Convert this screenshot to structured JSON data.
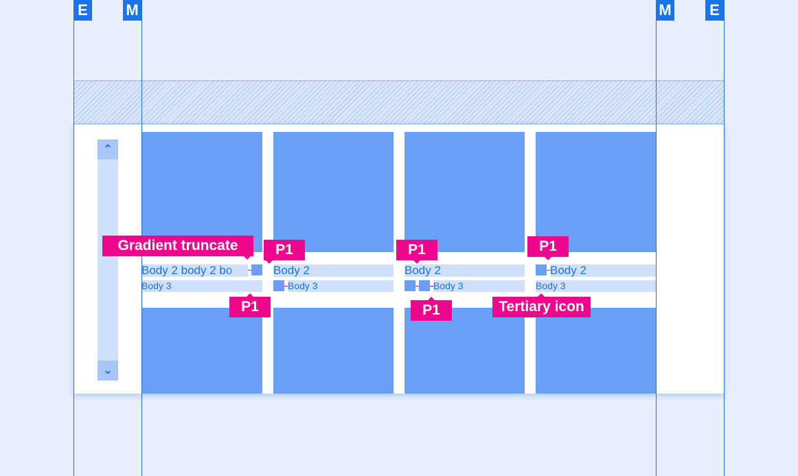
{
  "badges": {
    "edge": "E",
    "margin": "M"
  },
  "scrollbar": {
    "up_icon": "chevron-up-icon",
    "down_icon": "chevron-down-icon"
  },
  "columns": [
    {
      "body2": "Body 2 body 2 bo",
      "body3": "Body 3"
    },
    {
      "body2": "Body 2",
      "body3": "Body 3"
    },
    {
      "body2": "Body 2",
      "body3": "Body 3"
    },
    {
      "body2": "Body 2",
      "body3": "Body 3"
    }
  ],
  "labels": {
    "gradient_truncate": "Gradient truncate",
    "p1": "P1",
    "tertiary_icon": "Tertiary icon"
  },
  "colors": {
    "accent": "#1a73e8",
    "tile": "#699ff7",
    "annotation": "#f0068c"
  }
}
